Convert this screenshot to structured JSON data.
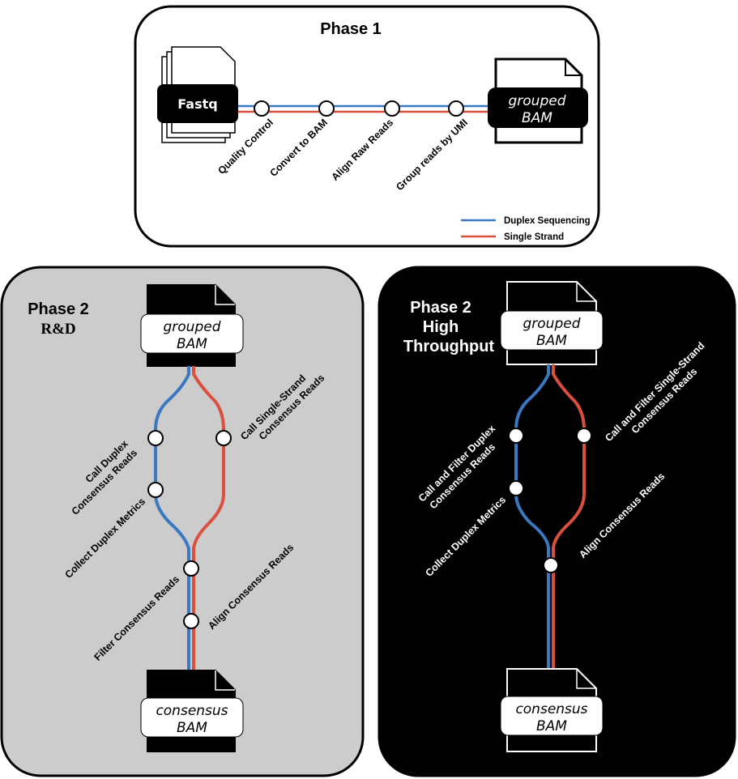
{
  "phase1": {
    "title": "Phase 1",
    "input_file": "Fastq",
    "output_file_line1": "grouped",
    "output_file_line2": "BAM",
    "steps": [
      "Quality Control",
      "Convert to BAM",
      "Align Raw Reads",
      "Group reads by UMI"
    ],
    "legend": {
      "duplex_label": "Duplex Sequencing",
      "single_label": "Single Strand"
    }
  },
  "phase2_rd": {
    "title_line1": "Phase 2",
    "title_line2": "R&D",
    "input_line1": "grouped",
    "input_line2": "BAM",
    "output_line1": "consensus",
    "output_line2": "BAM",
    "step_call_duplex_1": "Call Duplex",
    "step_call_duplex_2": "Consensus Reads",
    "step_collect": "Collect Duplex Metrics",
    "step_call_single_1": "Call Single-Strand",
    "step_call_single_2": "Consensus Reads",
    "step_filter": "Filter Consensus Reads",
    "step_align": "Align Consensus Reads"
  },
  "phase2_ht": {
    "title_line1": "Phase 2",
    "title_line2": "High",
    "title_line3": "Throughput",
    "input_line1": "grouped",
    "input_line2": "BAM",
    "output_line1": "consensus",
    "output_line2": "BAM",
    "step_call_duplex_1": "Call and Filter Duplex",
    "step_call_duplex_2": "Consensus Reads",
    "step_collect": "Collect Duplex Metrics",
    "step_call_single_1": "Call and Filter Single-Strand",
    "step_call_single_2": "Consensus Reads",
    "step_align": "Align Consensus Reads"
  },
  "colors": {
    "duplex": "#3a78c2",
    "single": "#d9503f",
    "rd_panel": "#cccccc",
    "ht_panel": "#000000"
  }
}
